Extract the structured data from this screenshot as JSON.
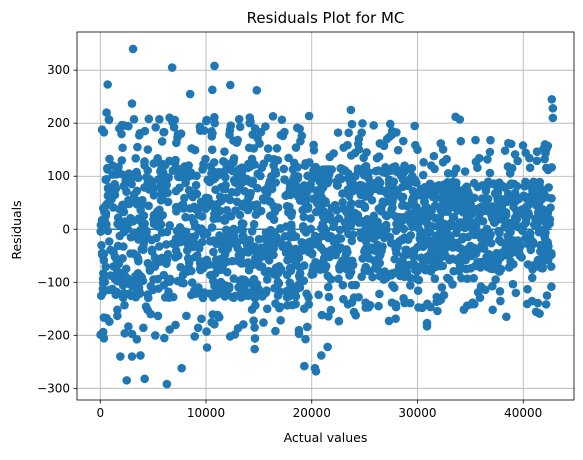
{
  "chart_data": {
    "type": "scatter",
    "title": "Residuals Plot for MC",
    "xlabel": "Actual values",
    "ylabel": "Residuals",
    "xlim": [
      -2200,
      44800
    ],
    "ylim": [
      -322,
      372
    ],
    "x_ticks": [
      0,
      10000,
      20000,
      30000,
      40000
    ],
    "x_tick_labels": [
      "0",
      "10000",
      "20000",
      "30000",
      "40000"
    ],
    "y_ticks": [
      -300,
      -200,
      -100,
      0,
      100,
      200,
      300
    ],
    "y_tick_labels": [
      "−300",
      "−200",
      "−100",
      "0",
      "100",
      "200",
      "300"
    ],
    "grid": true,
    "marker_color": "#1f77b4",
    "baseline": {
      "y": 0,
      "x_from": 0,
      "x_to": 42700,
      "color": "#1f77b4"
    },
    "dense_regions": [
      {
        "x_range": [
          0,
          20000
        ],
        "y_range": [
          -130,
          135
        ]
      },
      {
        "x_range": [
          20000,
          30000
        ],
        "y_range": [
          -95,
          120
        ]
      },
      {
        "x_range": [
          30000,
          42700
        ],
        "y_range": [
          -80,
          90
        ]
      }
    ],
    "outliers": [
      {
        "x": 3100,
        "y": 340
      },
      {
        "x": 6800,
        "y": 305
      },
      {
        "x": 10800,
        "y": 308
      },
      {
        "x": 700,
        "y": 273
      },
      {
        "x": 12300,
        "y": 272
      },
      {
        "x": 8500,
        "y": 255
      },
      {
        "x": 14800,
        "y": 262
      },
      {
        "x": 10600,
        "y": 263
      },
      {
        "x": 3000,
        "y": 237
      },
      {
        "x": 23700,
        "y": 225
      },
      {
        "x": 600,
        "y": 220
      },
      {
        "x": 42700,
        "y": 245
      },
      {
        "x": 42800,
        "y": 228
      },
      {
        "x": 42800,
        "y": 210
      },
      {
        "x": 33600,
        "y": 212
      },
      {
        "x": 34000,
        "y": 207
      },
      {
        "x": 1800,
        "y": 190
      },
      {
        "x": 27600,
        "y": 185
      },
      {
        "x": 30000,
        "y": 150
      },
      {
        "x": 36900,
        "y": 168
      },
      {
        "x": 42000,
        "y": 153
      },
      {
        "x": 42100,
        "y": 143
      },
      {
        "x": 1900,
        "y": -240
      },
      {
        "x": 2500,
        "y": -285
      },
      {
        "x": 4200,
        "y": -282
      },
      {
        "x": 6300,
        "y": -292
      },
      {
        "x": 7700,
        "y": -262
      },
      {
        "x": 3000,
        "y": -240
      },
      {
        "x": 3800,
        "y": -238
      },
      {
        "x": 19300,
        "y": -258
      },
      {
        "x": 20300,
        "y": -262
      },
      {
        "x": 20400,
        "y": -268
      },
      {
        "x": 20900,
        "y": -238
      },
      {
        "x": 21500,
        "y": -222
      },
      {
        "x": 14600,
        "y": -226
      },
      {
        "x": 10100,
        "y": -223
      },
      {
        "x": 30900,
        "y": -183
      },
      {
        "x": 30900,
        "y": -177
      },
      {
        "x": 38400,
        "y": -165
      },
      {
        "x": 34700,
        "y": -144
      },
      {
        "x": 39300,
        "y": -120
      },
      {
        "x": 40400,
        "y": -113
      },
      {
        "x": 41000,
        "y": -68
      },
      {
        "x": 41500,
        "y": -58
      },
      {
        "x": 41800,
        "y": -55
      },
      {
        "x": 37800,
        "y": -117
      },
      {
        "x": 36000,
        "y": -108
      }
    ]
  }
}
